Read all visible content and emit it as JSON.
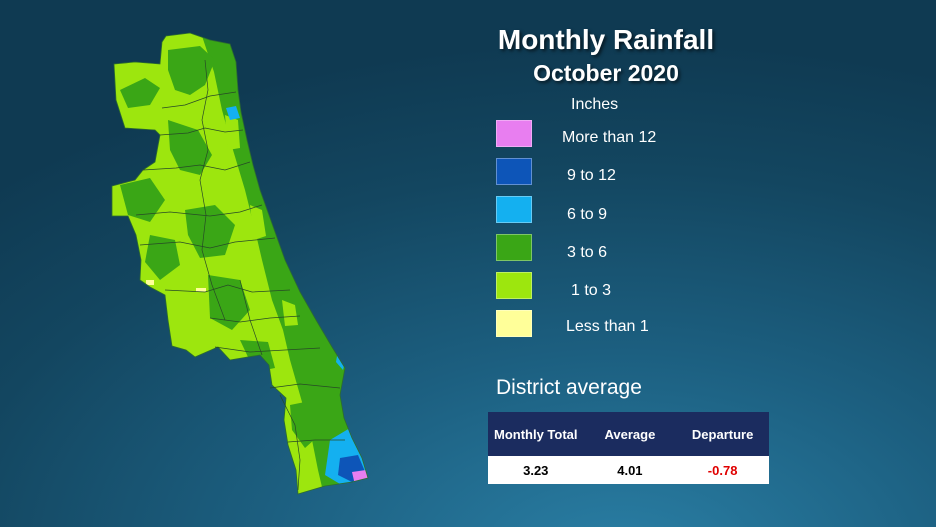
{
  "title": "Monthly Rainfall",
  "subtitle": "October 2020",
  "legend": {
    "unit": "Inches",
    "items": [
      {
        "label": "More than 12",
        "color": "#e87ef0"
      },
      {
        "label": "9 to 12",
        "color": "#0d55b8"
      },
      {
        "label": "6 to 9",
        "color": "#14b0f0"
      },
      {
        "label": "3 to 6",
        "color": "#3aa616"
      },
      {
        "label": "1 to 3",
        "color": "#9de60e"
      },
      {
        "label": "Less than 1",
        "color": "#ffff99"
      }
    ]
  },
  "district": {
    "heading": "District average",
    "columns": [
      "Monthly Total",
      "Average",
      "Departure"
    ],
    "values": [
      "3.23",
      "4.01",
      "-0.78"
    ]
  }
}
